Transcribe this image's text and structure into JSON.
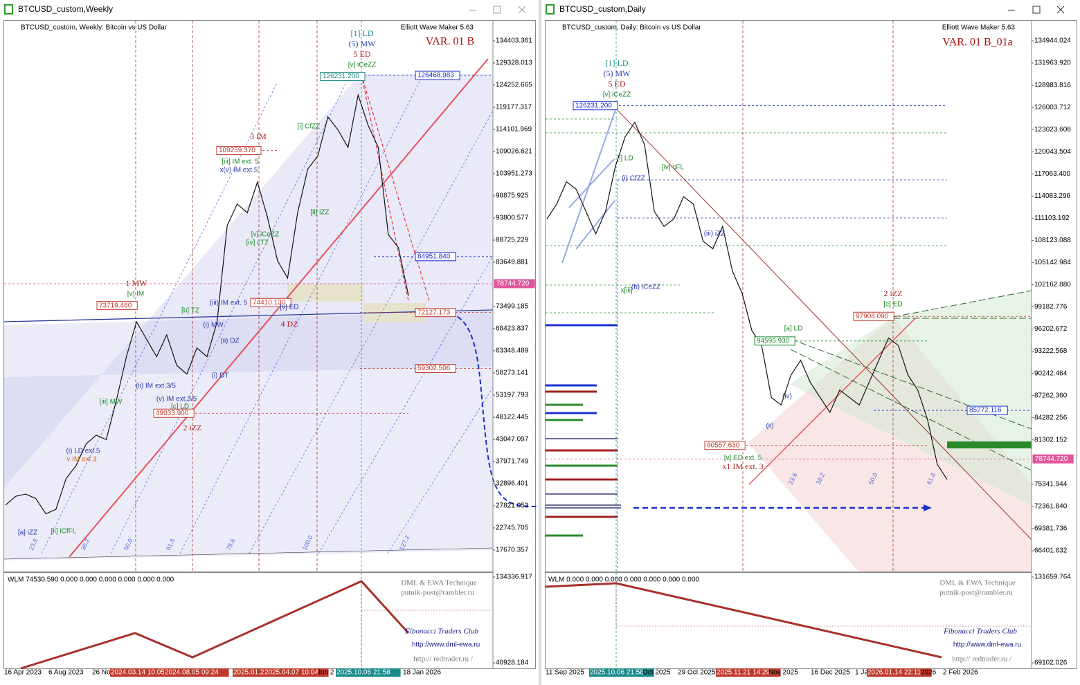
{
  "windows": [
    {
      "title": "BTCUSD_custom,Weekly",
      "header": "BTCUSD_custom, Weekly:  Bitcoin vs US Dollar",
      "brand": "Elliott Wave Maker 5.63",
      "variant": "VAR. 01 B",
      "price_axis": {
        "ylim": [
          12753.7,
          139002.8
        ],
        "ticks": [
          134403.361,
          129328.013,
          124252.665,
          119177.317,
          114101.969,
          109026.621,
          103951.273,
          98875.925,
          93800.577,
          88725.229,
          83649.881,
          73499.185,
          68423.837,
          63348.489,
          58273.141,
          53197.793,
          48122.445,
          43047.097,
          37971.749,
          32896.401,
          27821.053,
          22745.705,
          17670.357
        ]
      },
      "indicator_axis": {
        "ticks": [
          134336.917,
          40928.184
        ]
      },
      "price_levels": {
        "values": [
          126468.983,
          126231.2,
          109259.37,
          84951.84,
          78744.72,
          74410.13,
          73719.46,
          72127.173,
          59302.506,
          49033.9
        ],
        "value_labels": [
          "126468.983",
          "126231.200",
          "109259.370",
          "84951.840",
          "78744.720",
          "74410.130",
          "73719.460",
          "72127.173",
          "59302.506",
          "49033.900"
        ],
        "colors": [
          "#1a2fd0",
          "#1a8a8a",
          "#c0392b",
          "#1a2fd0",
          "#e0569e",
          "#c0392b",
          "#c0392b",
          "#c0392b",
          "#c0392b",
          "#c0392b"
        ]
      },
      "price_path": {
        "color": "#111111",
        "values": [
          28000,
          30000,
          30500,
          29500,
          26000,
          27000,
          34000,
          37000,
          42000,
          44000,
          43000,
          52000,
          62000,
          70000,
          66000,
          62000,
          67000,
          60000,
          58000,
          64000,
          62000,
          70000,
          92000,
          97000,
          95000,
          102000,
          94000,
          84000,
          80000,
          95000,
          105000,
          108000,
          117000,
          114000,
          110000,
          122000,
          115000,
          110000,
          90000,
          87000,
          76000
        ]
      },
      "date_labels": [
        "16 Apr 2023",
        "6 Aug 2023",
        "26 No",
        "2024.03.14 10:05",
        "2024.08.05 09:24",
        "2025.01.2",
        "2025.04.07 10:04",
        "Jun 2",
        "2025.10.06 21:58",
        "18 Jan 2026"
      ],
      "annotations": [
        "[1] LD",
        "(5) MW",
        "5 ED",
        "[v] iCeZZ",
        "3 IM",
        "[iii] IM ext. 5",
        "x(v) IM ext.5",
        "[v] iCeZZ",
        "[iv] cTT",
        "1 MW",
        "[v] IM",
        "(iii) IM ext. 5",
        "[v] ED",
        "4 DZ",
        "[c] LD",
        "2 iZZ",
        "[iii] MW",
        "[ii] iZZ",
        "[i] CfZZ",
        "(i) LD ext.5",
        "v IM ext.3",
        "[a] iZZ",
        "[ii] iCfFL",
        "(ii) IM ext.3/5",
        "(v) IM ext.3/5",
        "[b] TZ",
        "(i) MW",
        "(ii) DZ",
        "(i) DT"
      ],
      "fib_labels": [
        "23.6",
        "38.2",
        "50.0",
        "61.8",
        "78.6",
        "100.0",
        "127.2"
      ],
      "indicator_text": [
        "WLM 74530.590 0.000 0.000 0.000 0.000 0.000 0.000",
        "DML & EWA Technique",
        "putnik-post@rambler.ru",
        "Fibonacci     Traders     Club",
        "http://www.dml-ewa.ru",
        "http:// redtrader.ru /"
      ]
    },
    {
      "title": "BTCUSD_custom,Daily",
      "header": "BTCUSD_custom, Daily:  Bitcoin vs US Dollar",
      "brand": "Elliott Wave Maker 5.63",
      "variant": "VAR. 01 B_01a",
      "price_axis": {
        "ylim": [
          63607.8,
          137644.7
        ],
        "ticks": [
          134944.024,
          {
            "value": 131963.92,
            "label": "131963.920"
          },
          128983.816,
          126003.712,
          123023.608,
          120043.504,
          {
            "value": 117063.4,
            "label": "117063.400"
          },
          114083.296,
          111103.192,
          108123.088,
          105142.984,
          {
            "value": 102162.88,
            "label": "102162.880"
          },
          99182.776,
          96202.672,
          93222.568,
          90242.464,
          {
            "value": 87262.36,
            "label": "87262.360"
          },
          84282.256,
          81302.152,
          75341.944,
          {
            "value": 72361.84,
            "label": "72361.840"
          },
          69381.736,
          66401.632
        ]
      },
      "indicator_axis": {
        "ticks": [
          131659.764,
          69102.026
        ]
      },
      "price_levels": {
        "values": [
          126231.2,
          97908.09,
          94595.93,
          85272.116,
          80557.63,
          78744.72
        ],
        "value_labels": [
          "126231.200",
          "97908.090",
          "94595.930",
          "85272.116",
          "80557.630",
          "78744.720"
        ],
        "colors": [
          "#1a2fd0",
          "#c0392b",
          "#1e8a2a",
          "#1a2fd0",
          "#c0392b",
          "#e0569e"
        ]
      },
      "price_path": {
        "color": "#111111",
        "values": [
          111000,
          113000,
          116000,
          115000,
          112000,
          109000,
          112000,
          118000,
          122000,
          124000,
          121000,
          112000,
          110000,
          111000,
          114000,
          113000,
          108000,
          107000,
          110000,
          104000,
          101000,
          96000,
          94000,
          87000,
          86000,
          90000,
          92000,
          89000,
          87000,
          85000,
          88000,
          87000,
          86000,
          89000,
          92000,
          95000,
          94000,
          90000,
          88000,
          84000,
          78000,
          76000
        ]
      },
      "date_labels": [
        "11 Sep 2025",
        "2025.10.06 21:58",
        "Oct 2025",
        "29 Oct 2025",
        "2025.11.21 14:29",
        "Nov 2025",
        "16 Dec 2025",
        "1 Ja",
        "2026.01.14 22:11",
        "2026",
        "2 Feb 2026"
      ],
      "annotations": [
        "[1] LD",
        "(5) MW",
        "5 ED",
        "[v] iCeZZ",
        "[i] LD",
        "[iv] cFL",
        "(iii) iZZ",
        "x[iii]",
        "(b) iCeZZ",
        "2 iZZ",
        "[c] ED",
        "[a] LD",
        "[v] ED ext. 5",
        "x1 IM ext. 3",
        "(i) CfZZ",
        "(iv)",
        "(ii)"
      ],
      "fib_labels": [
        "23.6",
        "38.2",
        "50.0",
        "61.8"
      ],
      "indicator_text": [
        "WLM 0.000 0.000 0.000 0.000 0.000 0.000 0.000",
        "DML & EWA Technique",
        "putnik-post@rambler.ru",
        "Fibonacci     Traders     Club",
        "http://www.dml-ewa.ru",
        "http:// redtrader.ru /"
      ]
    }
  ]
}
